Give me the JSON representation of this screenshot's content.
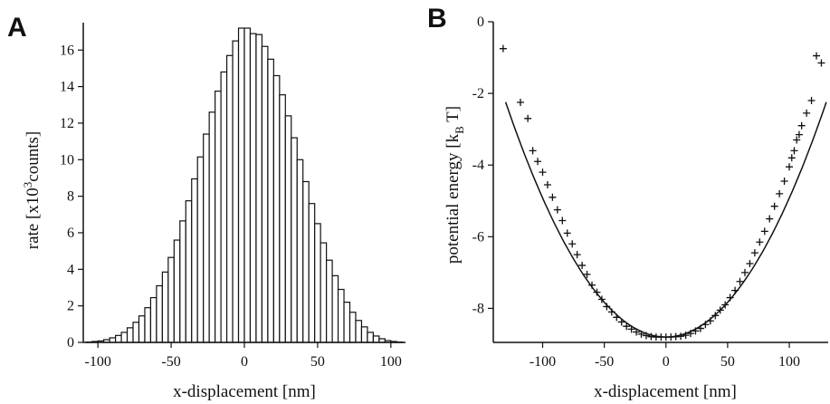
{
  "chart_data": [
    {
      "panel": "A",
      "type": "bar",
      "xlabel": "x-displacement [nm]",
      "ylabel_parts": [
        "rate [x10",
        "3",
        "counts]"
      ],
      "xlim": [
        -110,
        110
      ],
      "ylim": [
        0,
        17.5
      ],
      "xticks": [
        -100,
        -50,
        0,
        50,
        100
      ],
      "yticks": [
        0,
        2,
        4,
        6,
        8,
        10,
        12,
        14,
        16
      ],
      "bin_width": 4,
      "x": [
        -106,
        -102,
        -98,
        -94,
        -90,
        -86,
        -82,
        -78,
        -74,
        -70,
        -66,
        -62,
        -58,
        -54,
        -50,
        -46,
        -42,
        -38,
        -34,
        -30,
        -26,
        -22,
        -18,
        -14,
        -10,
        -6,
        -2,
        2,
        6,
        10,
        14,
        18,
        22,
        26,
        30,
        34,
        38,
        42,
        46,
        50,
        54,
        58,
        62,
        66,
        70,
        74,
        78,
        82,
        86,
        90,
        94,
        98,
        102,
        106
      ],
      "values": [
        0.02,
        0.05,
        0.08,
        0.15,
        0.25,
        0.38,
        0.55,
        0.8,
        1.1,
        1.45,
        1.9,
        2.45,
        3.1,
        3.85,
        4.65,
        5.6,
        6.65,
        7.75,
        8.95,
        10.15,
        11.4,
        12.6,
        13.75,
        14.8,
        15.7,
        16.5,
        17.2,
        17.2,
        16.9,
        16.85,
        16.2,
        15.5,
        14.6,
        13.55,
        12.4,
        11.2,
        10,
        8.8,
        7.6,
        6.5,
        5.45,
        4.5,
        3.65,
        2.9,
        2.2,
        1.65,
        1.2,
        0.85,
        0.55,
        0.35,
        0.2,
        0.1,
        0.05,
        0.02
      ]
    },
    {
      "panel": "B",
      "type": "scatter",
      "xlabel": "x-displacement [nm]",
      "ylabel_parts": [
        "potential energy [k",
        "B",
        " T]"
      ],
      "xlim": [
        -140,
        133
      ],
      "ylim": [
        -8.95,
        0
      ],
      "xticks": [
        -100,
        -50,
        0,
        50,
        100
      ],
      "yticks": [
        0,
        -2,
        -4,
        -6,
        -8
      ],
      "fit": {
        "type": "parabola",
        "vertex_x": 0,
        "vertex_y": -8.8,
        "k": 0.000388,
        "x_range": [
          -130,
          130
        ]
      },
      "points": {
        "x": [
          -132,
          -118,
          -112,
          -108,
          -104,
          -100,
          -96,
          -92,
          -88,
          -84,
          -80,
          -76,
          -72,
          -68,
          -64,
          -60,
          -56,
          -52,
          -48,
          -44,
          -40,
          -36,
          -32,
          -28,
          -24,
          -20,
          -16,
          -12,
          -8,
          -4,
          0,
          4,
          8,
          12,
          16,
          20,
          24,
          28,
          32,
          36,
          40,
          44,
          48,
          52,
          56,
          60,
          64,
          68,
          72,
          76,
          80,
          84,
          88,
          92,
          96,
          100,
          102,
          104,
          106,
          108,
          110,
          114,
          118,
          122,
          126
        ],
        "y": [
          -0.75,
          -2.25,
          -2.7,
          -3.6,
          -3.9,
          -4.2,
          -4.55,
          -4.9,
          -5.25,
          -5.55,
          -5.9,
          -6.2,
          -6.5,
          -6.8,
          -7.05,
          -7.35,
          -7.55,
          -7.75,
          -7.95,
          -8.1,
          -8.25,
          -8.38,
          -8.5,
          -8.58,
          -8.66,
          -8.72,
          -8.76,
          -8.79,
          -8.8,
          -8.8,
          -8.8,
          -8.8,
          -8.79,
          -8.78,
          -8.75,
          -8.7,
          -8.63,
          -8.56,
          -8.45,
          -8.35,
          -8.2,
          -8.05,
          -7.9,
          -7.7,
          -7.5,
          -7.25,
          -7,
          -6.75,
          -6.45,
          -6.15,
          -5.85,
          -5.5,
          -5.15,
          -4.8,
          -4.45,
          -4.05,
          -3.8,
          -3.6,
          -3.3,
          -3.15,
          -2.9,
          -2.55,
          -2.2,
          -0.95,
          -1.15
        ]
      }
    }
  ]
}
